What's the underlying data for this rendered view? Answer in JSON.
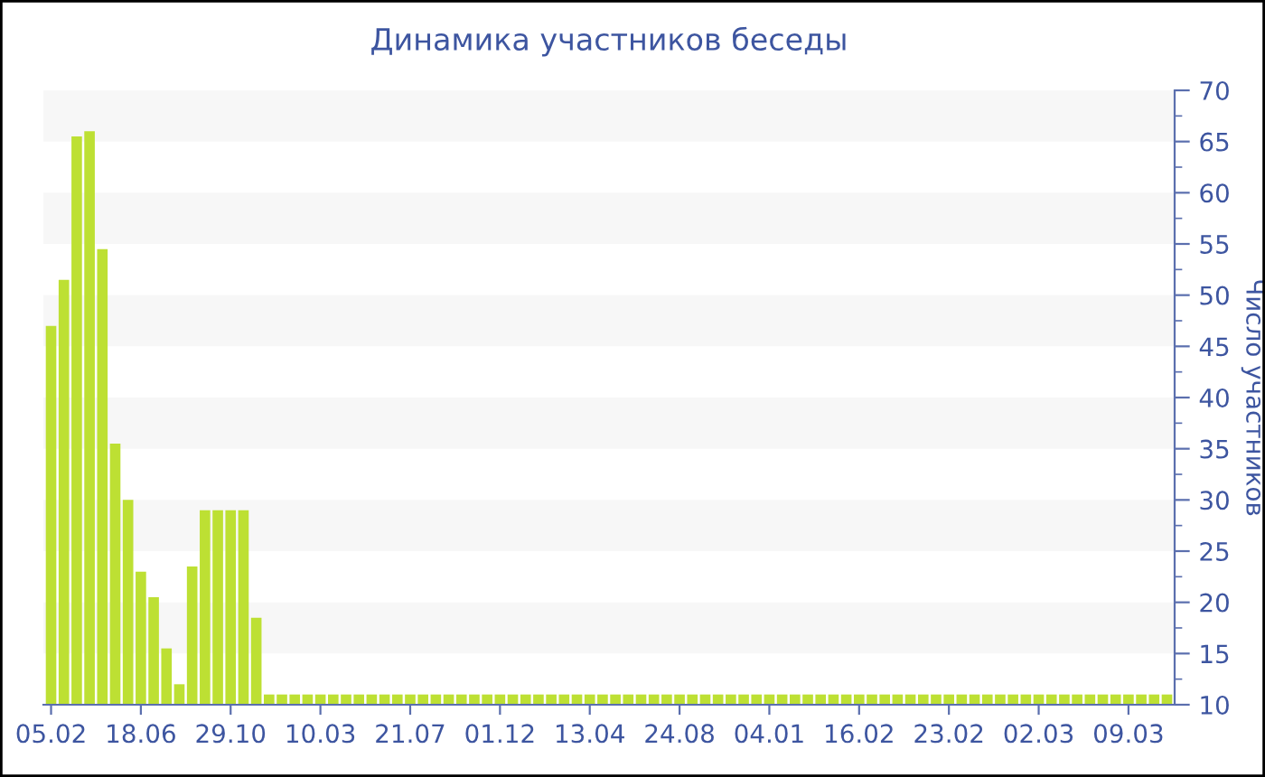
{
  "chart_data": {
    "type": "bar",
    "title": "Динамика участников беседы",
    "ylabel": "Число участников",
    "categories": [
      "05.02",
      null,
      null,
      null,
      null,
      null,
      null,
      "18.06",
      null,
      null,
      null,
      null,
      null,
      null,
      "29.10",
      null,
      null,
      null,
      null,
      null,
      null,
      "10.03",
      null,
      null,
      null,
      null,
      null,
      null,
      "21.07",
      null,
      null,
      null,
      null,
      null,
      null,
      "01.12",
      null,
      null,
      null,
      null,
      null,
      null,
      "13.04",
      null,
      null,
      null,
      null,
      null,
      null,
      "24.08",
      null,
      null,
      null,
      null,
      null,
      null,
      "04.01",
      null,
      null,
      null,
      null,
      null,
      null,
      "16.02",
      null,
      null,
      null,
      null,
      null,
      null,
      "23.02",
      null,
      null,
      null,
      null,
      null,
      null,
      "02.03",
      null,
      null,
      null,
      null,
      null,
      null,
      "09.03",
      null,
      null,
      null
    ],
    "values": [
      47,
      51.5,
      65.5,
      66,
      54.5,
      35.5,
      30,
      23,
      20.5,
      15.5,
      12,
      23.5,
      29,
      29,
      29,
      29,
      18.5,
      11,
      11,
      11,
      11,
      11,
      11,
      11,
      11,
      11,
      11,
      11,
      11,
      11,
      11,
      11,
      11,
      11,
      11,
      11,
      11,
      11,
      11,
      11,
      11,
      11,
      11,
      11,
      11,
      11,
      11,
      11,
      11,
      11,
      11,
      11,
      11,
      11,
      11,
      11,
      11,
      11,
      11,
      11,
      11,
      11,
      11,
      11,
      11,
      11,
      11,
      11,
      11,
      11,
      11,
      11,
      11,
      11,
      11,
      11,
      11,
      11,
      11,
      11,
      11,
      11,
      11,
      11,
      11,
      11,
      11,
      11
    ],
    "color": "#bde033",
    "ylim": [
      10,
      70
    ],
    "yticks": [
      10,
      15,
      20,
      25,
      30,
      35,
      40,
      45,
      50,
      55,
      60,
      65,
      70
    ],
    "bands": [
      {
        "axis": "y",
        "from": 65,
        "to": 70,
        "color": "#f7f7f7"
      },
      {
        "axis": "y",
        "from": 55,
        "to": 60,
        "color": "#f7f7f7"
      },
      {
        "axis": "y",
        "from": 45,
        "to": 50,
        "color": "#f7f7f7"
      },
      {
        "axis": "y",
        "from": 35,
        "to": 40,
        "color": "#f7f7f7"
      },
      {
        "axis": "y",
        "from": 25,
        "to": 30,
        "color": "#f7f7f7"
      },
      {
        "axis": "y",
        "from": 15,
        "to": 20,
        "color": "#f7f7f7"
      }
    ],
    "legend": false
  }
}
